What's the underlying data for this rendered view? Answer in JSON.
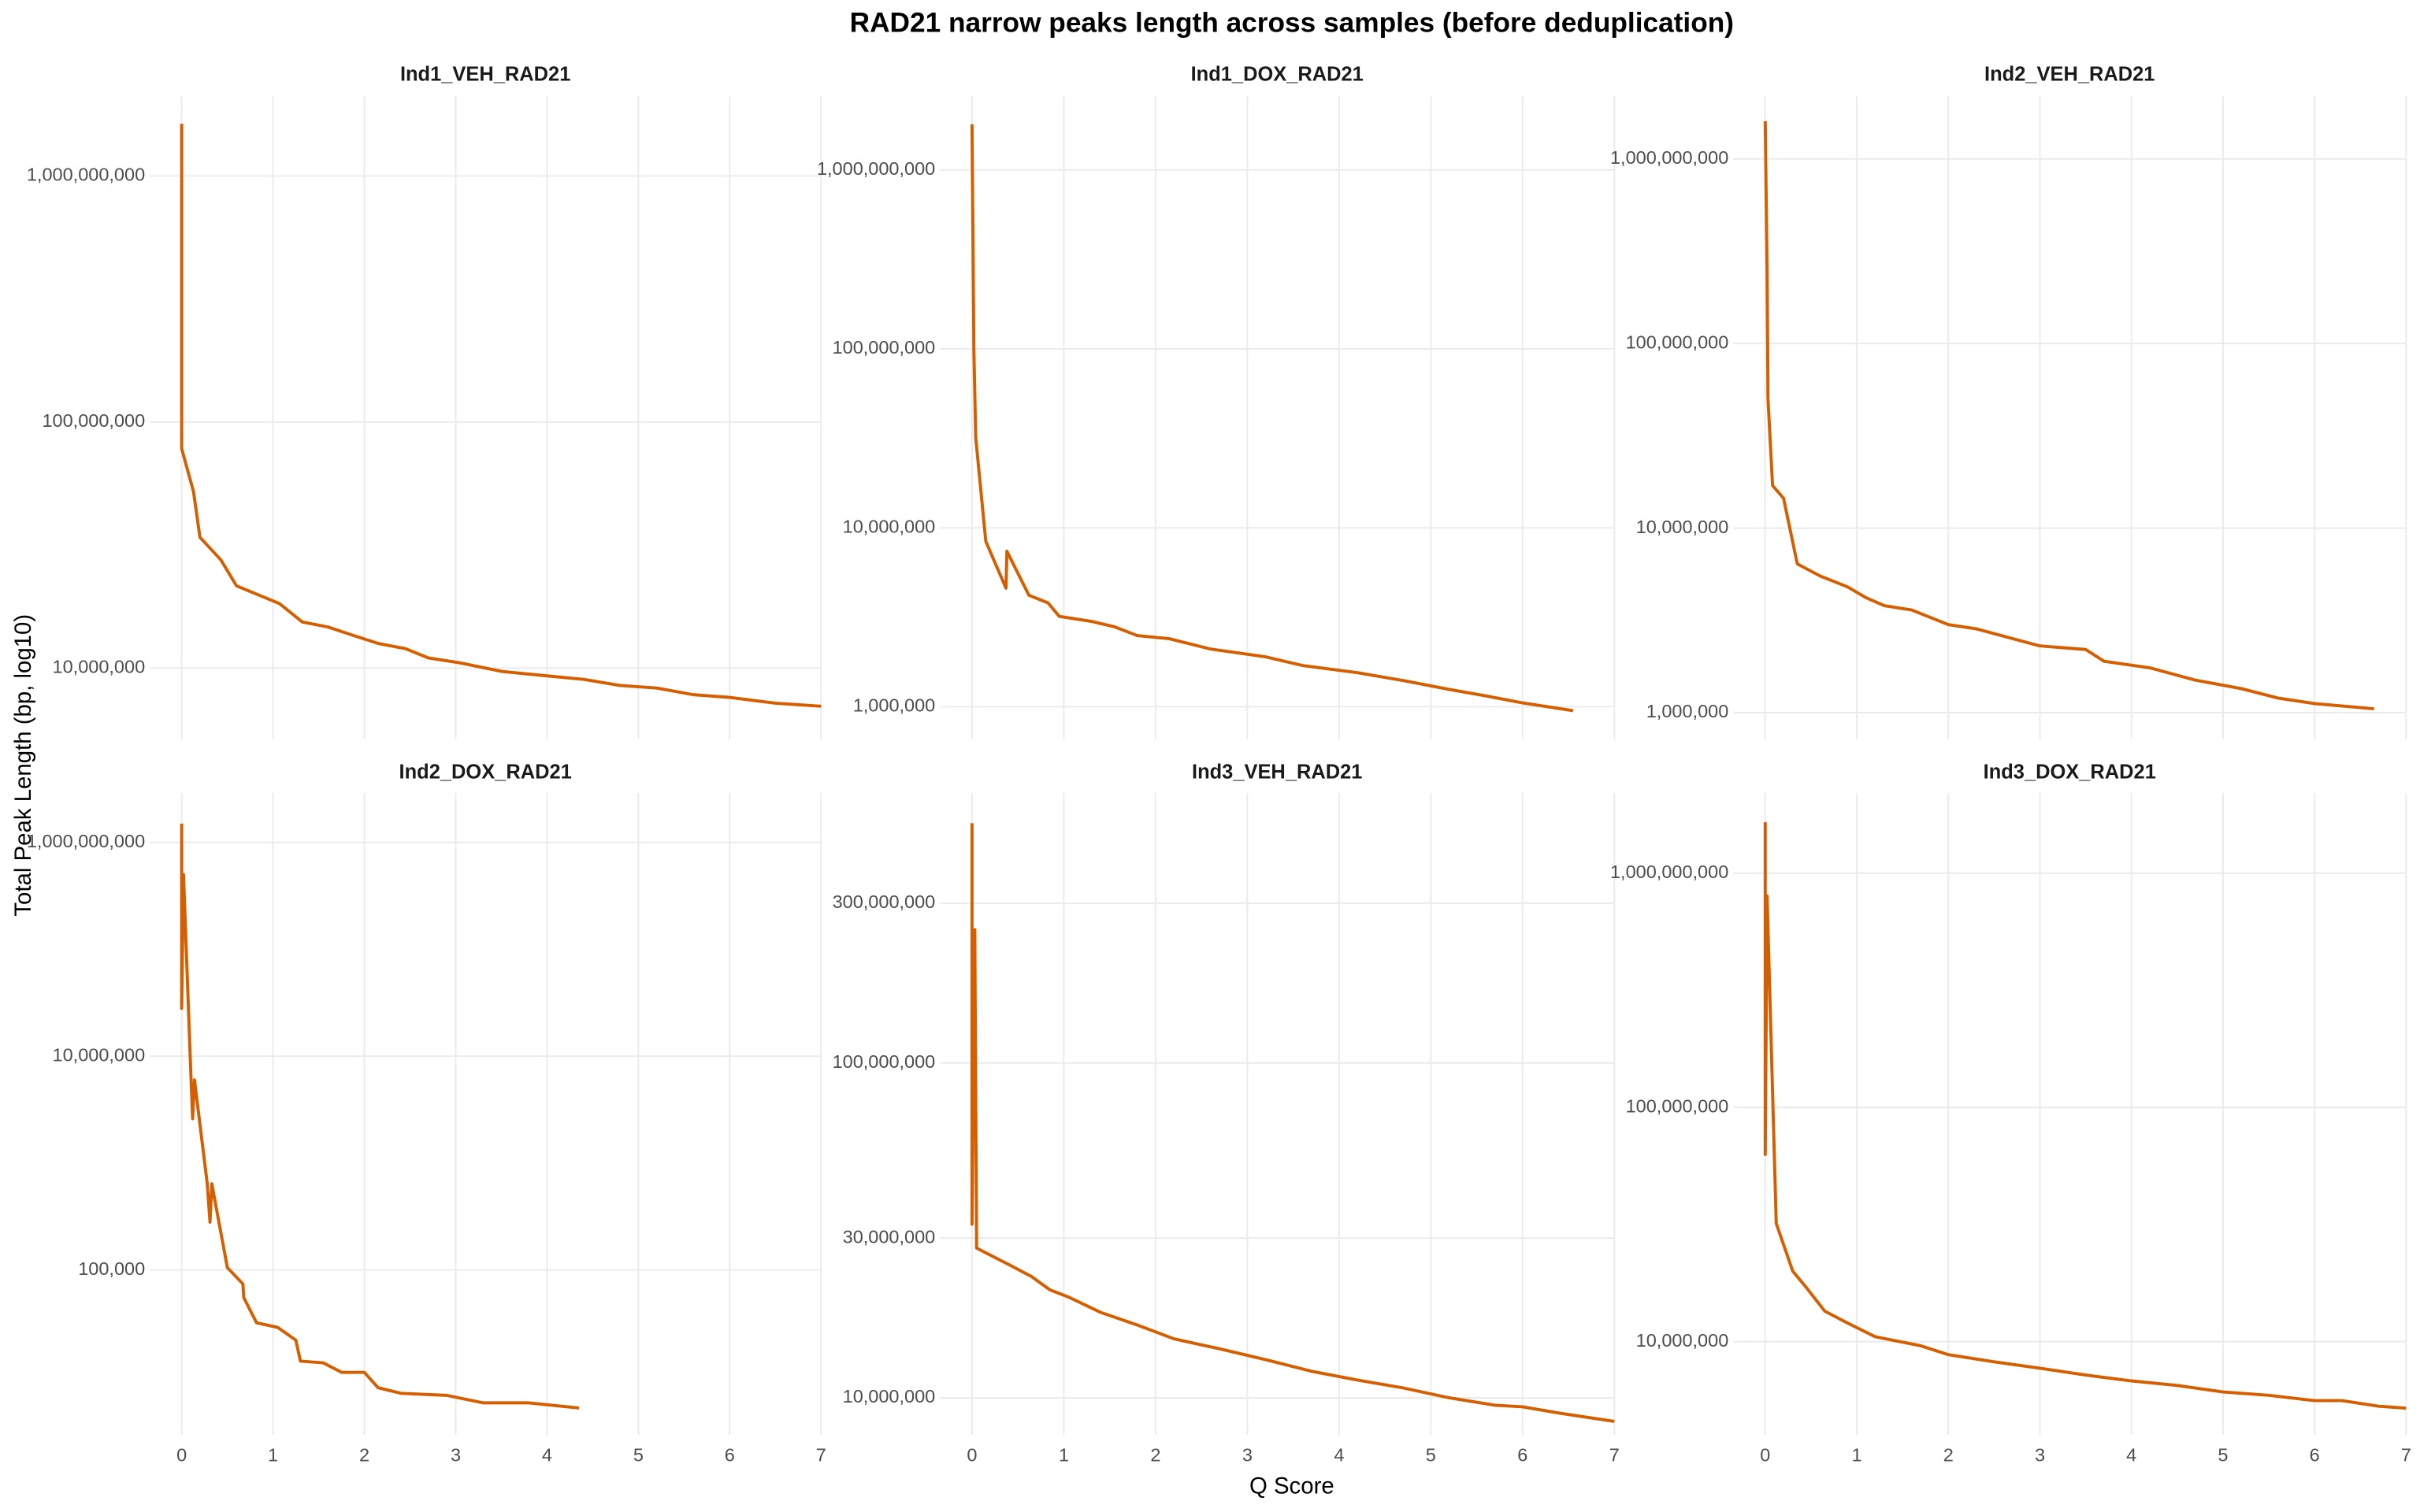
{
  "title": "RAD21 narrow peaks length across samples (before deduplication)",
  "xlabel": "Q Score",
  "ylabel": "Total Peak Length (bp, log10)",
  "chart_data": [
    {
      "type": "line",
      "title": "Ind1_VEH_RAD21",
      "color": "#d55e00",
      "log_y": true,
      "grid": true,
      "x": [
        0,
        0,
        0.13,
        0.2,
        0.43,
        0.6,
        1.07,
        1.32,
        1.6,
        1.9,
        2.15,
        2.45,
        2.7,
        3.05,
        3.5,
        4.0,
        4.4,
        4.8,
        5.2,
        5.6,
        6.0,
        6.5,
        7.0
      ],
      "values": [
        1630000000,
        78000000,
        52000000,
        34000000,
        27500000,
        21600000,
        18300000,
        15400000,
        14700000,
        13500000,
        12600000,
        12000000,
        11000000,
        10500000,
        9700000,
        9300000,
        9000000,
        8500000,
        8300000,
        7800000,
        7600000,
        7200000,
        7000000
      ],
      "xlim": [
        -0.35,
        7
      ],
      "xticks": [
        0,
        1,
        2,
        3,
        4,
        5,
        6,
        7
      ],
      "ylim": [
        5150000,
        2120000000
      ],
      "yticks": [
        {
          "value": 10000000,
          "label": "10,000,000"
        },
        {
          "value": 100000000,
          "label": "100,000,000"
        },
        {
          "value": 1000000000,
          "label": "1,000,000,000"
        }
      ]
    },
    {
      "type": "line",
      "title": "Ind1_DOX_RAD21",
      "color": "#d55e00",
      "log_y": true,
      "grid": true,
      "x": [
        0,
        0.02,
        0.04,
        0.15,
        0.37,
        0.38,
        0.62,
        0.83,
        0.95,
        1.3,
        1.55,
        1.8,
        2.15,
        2.6,
        3.2,
        3.6,
        4.2,
        4.7,
        5.2,
        5.6,
        6.0,
        6.55
      ],
      "values": [
        1800000000,
        100000000,
        32000000,
        8400000,
        4600000,
        7400000,
        4200000,
        3800000,
        3200000,
        3000000,
        2800000,
        2500000,
        2400000,
        2100000,
        1900000,
        1700000,
        1550000,
        1400000,
        1250000,
        1150000,
        1050000,
        950000
      ],
      "xlim": [
        -0.35,
        7
      ],
      "xticks": [
        0,
        1,
        2,
        3,
        4,
        5,
        6,
        7
      ],
      "ylim": [
        660000,
        2600000000
      ],
      "yticks": [
        {
          "value": 1000000,
          "label": "1,000,000"
        },
        {
          "value": 10000000,
          "label": "10,000,000"
        },
        {
          "value": 100000000,
          "label": "100,000,000"
        },
        {
          "value": 1000000000,
          "label": "1,000,000,000"
        }
      ]
    },
    {
      "type": "line",
      "title": "Ind2_VEH_RAD21",
      "color": "#d55e00",
      "log_y": true,
      "grid": true,
      "x": [
        0,
        0.02,
        0.03,
        0.08,
        0.2,
        0.35,
        0.6,
        0.9,
        1.1,
        1.3,
        1.6,
        2.0,
        2.3,
        2.6,
        3.0,
        3.5,
        3.7,
        4.2,
        4.7,
        5.2,
        5.6,
        6.0,
        6.65
      ],
      "values": [
        1600000000,
        250000000,
        50000000,
        17000000,
        14500000,
        6400000,
        5500000,
        4800000,
        4200000,
        3800000,
        3600000,
        3000000,
        2850000,
        2600000,
        2300000,
        2200000,
        1900000,
        1750000,
        1500000,
        1350000,
        1200000,
        1120000,
        1050000
      ],
      "xlim": [
        -0.35,
        7
      ],
      "xticks": [
        0,
        1,
        2,
        3,
        4,
        5,
        6,
        7
      ],
      "ylim": [
        720000,
        2200000000
      ],
      "yticks": [
        {
          "value": 1000000,
          "label": "1,000,000"
        },
        {
          "value": 10000000,
          "label": "10,000,000"
        },
        {
          "value": 100000000,
          "label": "100,000,000"
        },
        {
          "value": 1000000000,
          "label": "1,000,000,000"
        }
      ]
    },
    {
      "type": "line",
      "title": "Ind2_DOX_RAD21",
      "color": "#d55e00",
      "log_y": true,
      "grid": true,
      "x": [
        0,
        0,
        0.02,
        0.1,
        0.12,
        0.14,
        0.28,
        0.31,
        0.33,
        0.5,
        0.67,
        0.68,
        0.82,
        1.05,
        1.25,
        1.3,
        1.55,
        1.75,
        2.0,
        2.15,
        2.4,
        2.9,
        3.3,
        3.8,
        4.35
      ],
      "values": [
        1500000000,
        28000000,
        500000000,
        7000000,
        2600000,
        6000000,
        640000,
        280000,
        640000,
        105000,
        74000,
        55000,
        32000,
        29000,
        22000,
        14000,
        13500,
        11000,
        11000,
        7900,
        7000,
        6700,
        5700,
        5700,
        5100
      ],
      "xlim": [
        -0.35,
        7
      ],
      "xticks": [
        0,
        1,
        2,
        3,
        4,
        5,
        6,
        7
      ],
      "ylim": [
        2860,
        2900000000
      ],
      "yticks": [
        {
          "value": 100000,
          "label": "100,000"
        },
        {
          "value": 10000000,
          "label": "10,000,000"
        },
        {
          "value": 1000000000,
          "label": "1,000,000,000"
        }
      ]
    },
    {
      "type": "line",
      "title": "Ind3_VEH_RAD21",
      "color": "#d55e00",
      "log_y": true,
      "grid": true,
      "x": [
        0,
        0,
        0.03,
        0.05,
        0.4,
        0.65,
        0.85,
        1.05,
        1.4,
        1.8,
        2.2,
        2.7,
        3.2,
        3.7,
        4.2,
        4.7,
        5.2,
        5.7,
        6.0,
        6.4,
        7.0
      ],
      "values": [
        520000000,
        33000000,
        250000000,
        28000000,
        25000000,
        23000000,
        21000000,
        20000000,
        18000000,
        16500000,
        15000000,
        14000000,
        13000000,
        12000000,
        11300000,
        10700000,
        10000000,
        9500000,
        9400000,
        9000000,
        8500000
      ],
      "xlim": [
        -0.35,
        7
      ],
      "xticks": [
        0,
        1,
        2,
        3,
        4,
        5,
        6,
        7
      ],
      "ylim": [
        7750000,
        640000000
      ],
      "yticks": [
        {
          "value": 10000000,
          "label": "10,000,000"
        },
        {
          "value": 30000000,
          "label": "30,000,000"
        },
        {
          "value": 100000000,
          "label": "100,000,000"
        },
        {
          "value": 300000000,
          "label": "300,000,000"
        }
      ]
    },
    {
      "type": "line",
      "title": "Ind3_DOX_RAD21",
      "color": "#d55e00",
      "log_y": true,
      "grid": true,
      "x": [
        0,
        0,
        0.02,
        0.12,
        0.3,
        0.45,
        0.65,
        0.9,
        1.2,
        1.7,
        2.0,
        2.5,
        3.0,
        3.5,
        4.0,
        4.5,
        5.0,
        5.5,
        6.0,
        6.3,
        6.7,
        7.0
      ],
      "values": [
        1650000000,
        63000000,
        800000000,
        32000000,
        20000000,
        17000000,
        13500000,
        12000000,
        10500000,
        9600000,
        8800000,
        8200000,
        7700000,
        7200000,
        6800000,
        6500000,
        6100000,
        5900000,
        5600000,
        5600000,
        5300000,
        5200000
      ],
      "xlim": [
        -0.35,
        7
      ],
      "xticks": [
        0,
        1,
        2,
        3,
        4,
        5,
        6,
        7
      ],
      "ylim": [
        4000000,
        2200000000
      ],
      "yticks": [
        {
          "value": 10000000,
          "label": "10,000,000"
        },
        {
          "value": 100000000,
          "label": "100,000,000"
        },
        {
          "value": 1000000000,
          "label": "1,000,000,000"
        }
      ]
    }
  ]
}
